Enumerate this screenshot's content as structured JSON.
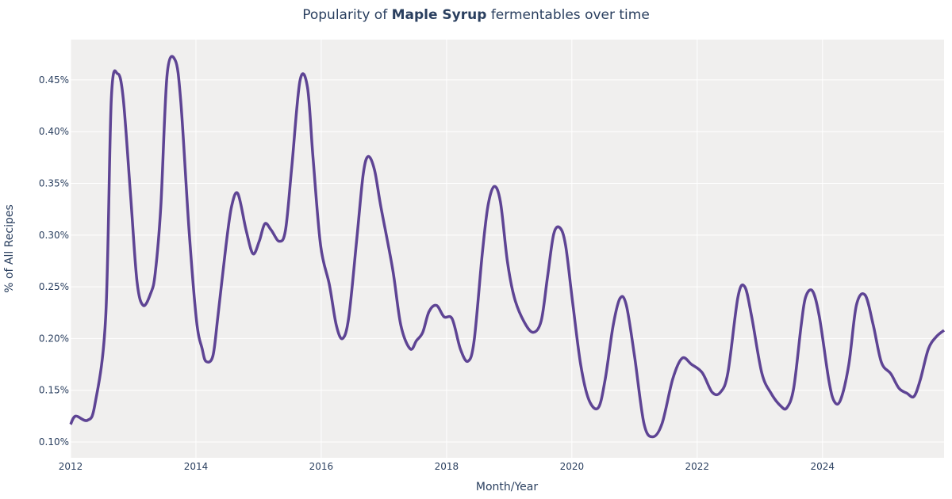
{
  "chart_data": {
    "type": "line",
    "title_prefix": "Popularity of ",
    "title_bold": "Maple Syrup",
    "title_suffix": " fermentables over time",
    "xlabel": "Month/Year",
    "ylabel": "% of All Recipes",
    "xlim": [
      2012,
      2025.94
    ],
    "ylim": [
      0.0847,
      0.489
    ],
    "grid": true,
    "line_color": "#5e4494",
    "plot_bg": "#f0efee",
    "x_ticks": [
      2012,
      2014,
      2016,
      2018,
      2020,
      2022,
      2024
    ],
    "x_tick_labels": [
      "2012",
      "2014",
      "2016",
      "2018",
      "2020",
      "2022",
      "2024"
    ],
    "y_ticks": [
      0.1,
      0.15,
      0.2,
      0.25,
      0.3,
      0.35,
      0.4,
      0.45
    ],
    "y_tick_labels": [
      "0.10%",
      "0.15%",
      "0.20%",
      "0.25%",
      "0.30%",
      "0.35%",
      "0.40%",
      "0.45%"
    ],
    "x": [
      2012.0,
      2012.08,
      2012.27,
      2012.39,
      2012.56,
      2012.65,
      2012.75,
      2012.84,
      2012.96,
      2013.06,
      2013.16,
      2013.28,
      2013.35,
      2013.44,
      2013.54,
      2013.67,
      2013.76,
      2013.89,
      2014.01,
      2014.1,
      2014.16,
      2014.27,
      2014.35,
      2014.48,
      2014.57,
      2014.67,
      2014.8,
      2014.91,
      2015.01,
      2015.1,
      2015.2,
      2015.33,
      2015.43,
      2015.53,
      2015.66,
      2015.78,
      2015.87,
      2015.99,
      2016.13,
      2016.24,
      2016.34,
      2016.44,
      2016.57,
      2016.67,
      2016.75,
      2016.85,
      2016.95,
      2017.14,
      2017.27,
      2017.42,
      2017.52,
      2017.62,
      2017.72,
      2017.84,
      2017.96,
      2018.09,
      2018.22,
      2018.34,
      2018.44,
      2018.57,
      2018.66,
      2018.76,
      2018.86,
      2018.97,
      2019.08,
      2019.23,
      2019.38,
      2019.51,
      2019.61,
      2019.71,
      2019.81,
      2019.9,
      2020.01,
      2020.14,
      2020.27,
      2020.42,
      2020.53,
      2020.66,
      2020.77,
      2020.87,
      2021.0,
      2021.15,
      2021.29,
      2021.44,
      2021.61,
      2021.76,
      2021.91,
      2022.08,
      2022.24,
      2022.37,
      2022.49,
      2022.65,
      2022.76,
      2022.87,
      2023.03,
      2023.18,
      2023.33,
      2023.43,
      2023.54,
      2023.66,
      2023.73,
      2023.84,
      2023.95,
      2024.1,
      2024.19,
      2024.29,
      2024.42,
      2024.54,
      2024.68,
      2024.81,
      2024.94,
      2025.09,
      2025.22,
      2025.35,
      2025.46,
      2025.56,
      2025.69,
      2025.82,
      2025.94
    ],
    "y": [
      0.117,
      0.125,
      0.121,
      0.137,
      0.221,
      0.432,
      0.456,
      0.432,
      0.336,
      0.255,
      0.232,
      0.244,
      0.263,
      0.328,
      0.455,
      0.469,
      0.428,
      0.305,
      0.217,
      0.19,
      0.178,
      0.183,
      0.221,
      0.29,
      0.328,
      0.34,
      0.305,
      0.282,
      0.294,
      0.311,
      0.305,
      0.294,
      0.305,
      0.366,
      0.449,
      0.443,
      0.374,
      0.29,
      0.252,
      0.213,
      0.2,
      0.221,
      0.298,
      0.359,
      0.376,
      0.363,
      0.328,
      0.267,
      0.213,
      0.19,
      0.198,
      0.206,
      0.226,
      0.232,
      0.221,
      0.219,
      0.19,
      0.178,
      0.198,
      0.282,
      0.328,
      0.347,
      0.332,
      0.275,
      0.24,
      0.217,
      0.206,
      0.217,
      0.259,
      0.301,
      0.307,
      0.29,
      0.236,
      0.175,
      0.141,
      0.133,
      0.16,
      0.213,
      0.239,
      0.232,
      0.183,
      0.118,
      0.105,
      0.118,
      0.161,
      0.181,
      0.175,
      0.167,
      0.148,
      0.148,
      0.167,
      0.24,
      0.25,
      0.221,
      0.167,
      0.147,
      0.135,
      0.133,
      0.152,
      0.213,
      0.24,
      0.246,
      0.221,
      0.16,
      0.139,
      0.141,
      0.175,
      0.232,
      0.242,
      0.213,
      0.177,
      0.166,
      0.152,
      0.147,
      0.144,
      0.16,
      0.19,
      0.202,
      0.208
    ]
  }
}
